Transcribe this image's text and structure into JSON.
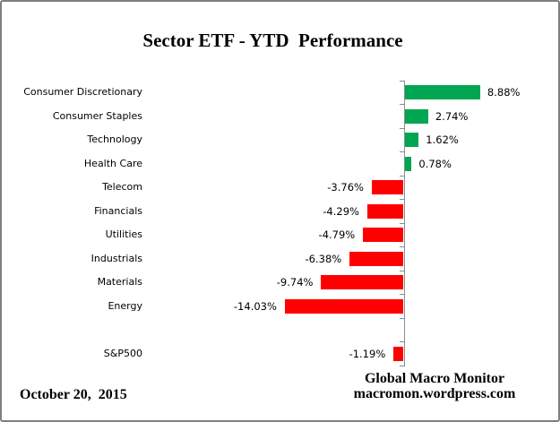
{
  "title": "Sector ETF - YTD  Performance",
  "footer": {
    "date": "October 20,  2015",
    "source_line1": "Global Macro Monitor",
    "source_line2": "macromon.wordpress.com"
  },
  "colors": {
    "positive_bar": "#00A651",
    "negative_bar": "#FF0000",
    "axis": "#8C8C8C",
    "border": "#7F7F7F",
    "text": "#000000"
  },
  "chart_data": {
    "type": "bar",
    "orientation": "horizontal",
    "title": "Sector ETF - YTD  Performance",
    "categories": [
      "Consumer Discretionary",
      "Consumer Staples",
      "Technology",
      "Health Care",
      "Telecom",
      "Financials",
      "Utilities",
      "Industrials",
      "Materials",
      "Energy",
      "",
      "S&P500"
    ],
    "values": [
      8.88,
      2.74,
      1.62,
      0.78,
      -3.76,
      -4.29,
      -4.79,
      -6.38,
      -9.74,
      -14.03,
      null,
      -1.19
    ],
    "value_labels": [
      "8.88%",
      "2.74%",
      "1.62%",
      "0.78%",
      "-3.76%",
      "-4.29%",
      "-4.79%",
      "-6.38%",
      "-9.74%",
      "-14.03%",
      "",
      "-1.19%"
    ],
    "unit": "%",
    "xlim": [
      -15,
      10
    ],
    "grid": false,
    "legend": false,
    "value_axis_labels_visible": false
  }
}
